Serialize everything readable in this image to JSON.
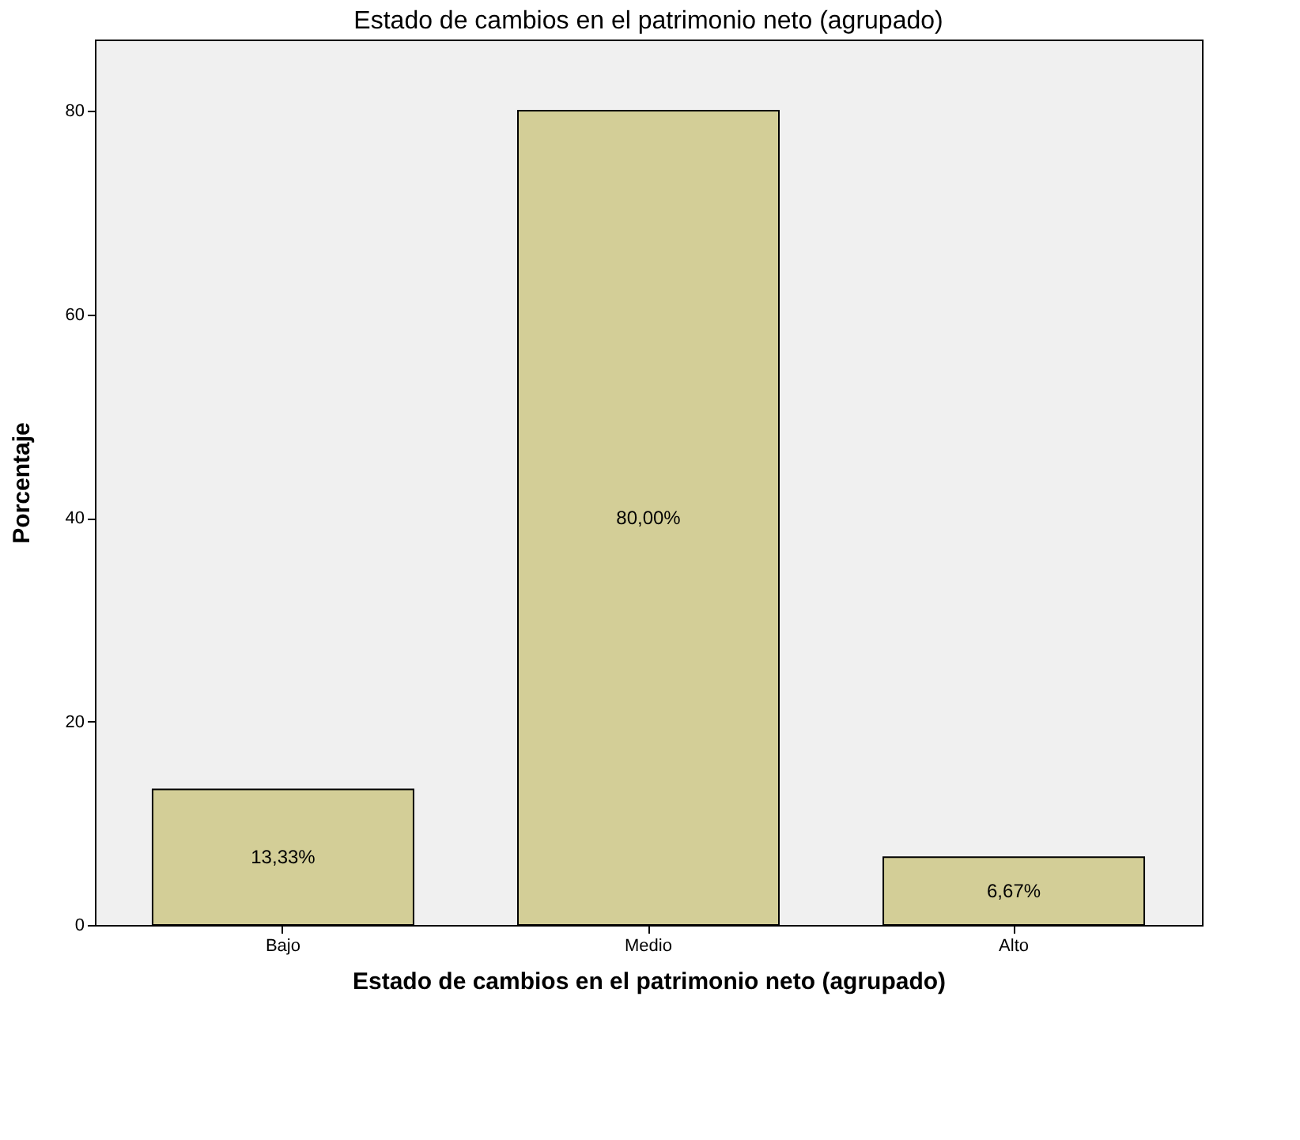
{
  "chart_data": {
    "type": "bar",
    "title": "Estado de cambios en el patrimonio neto (agrupado)",
    "xlabel": "Estado de cambios en el patrimonio neto (agrupado)",
    "ylabel": "Porcentaje",
    "categories": [
      "Bajo",
      "Medio",
      "Alto"
    ],
    "values": [
      13.33,
      80.0,
      6.67
    ],
    "value_labels": [
      "13,33%",
      "80,00%",
      "6,67%"
    ],
    "color": "#d3ce97",
    "ylim": [
      0,
      87
    ],
    "yticks": [
      0,
      20,
      40,
      60,
      80
    ],
    "grid": false
  }
}
